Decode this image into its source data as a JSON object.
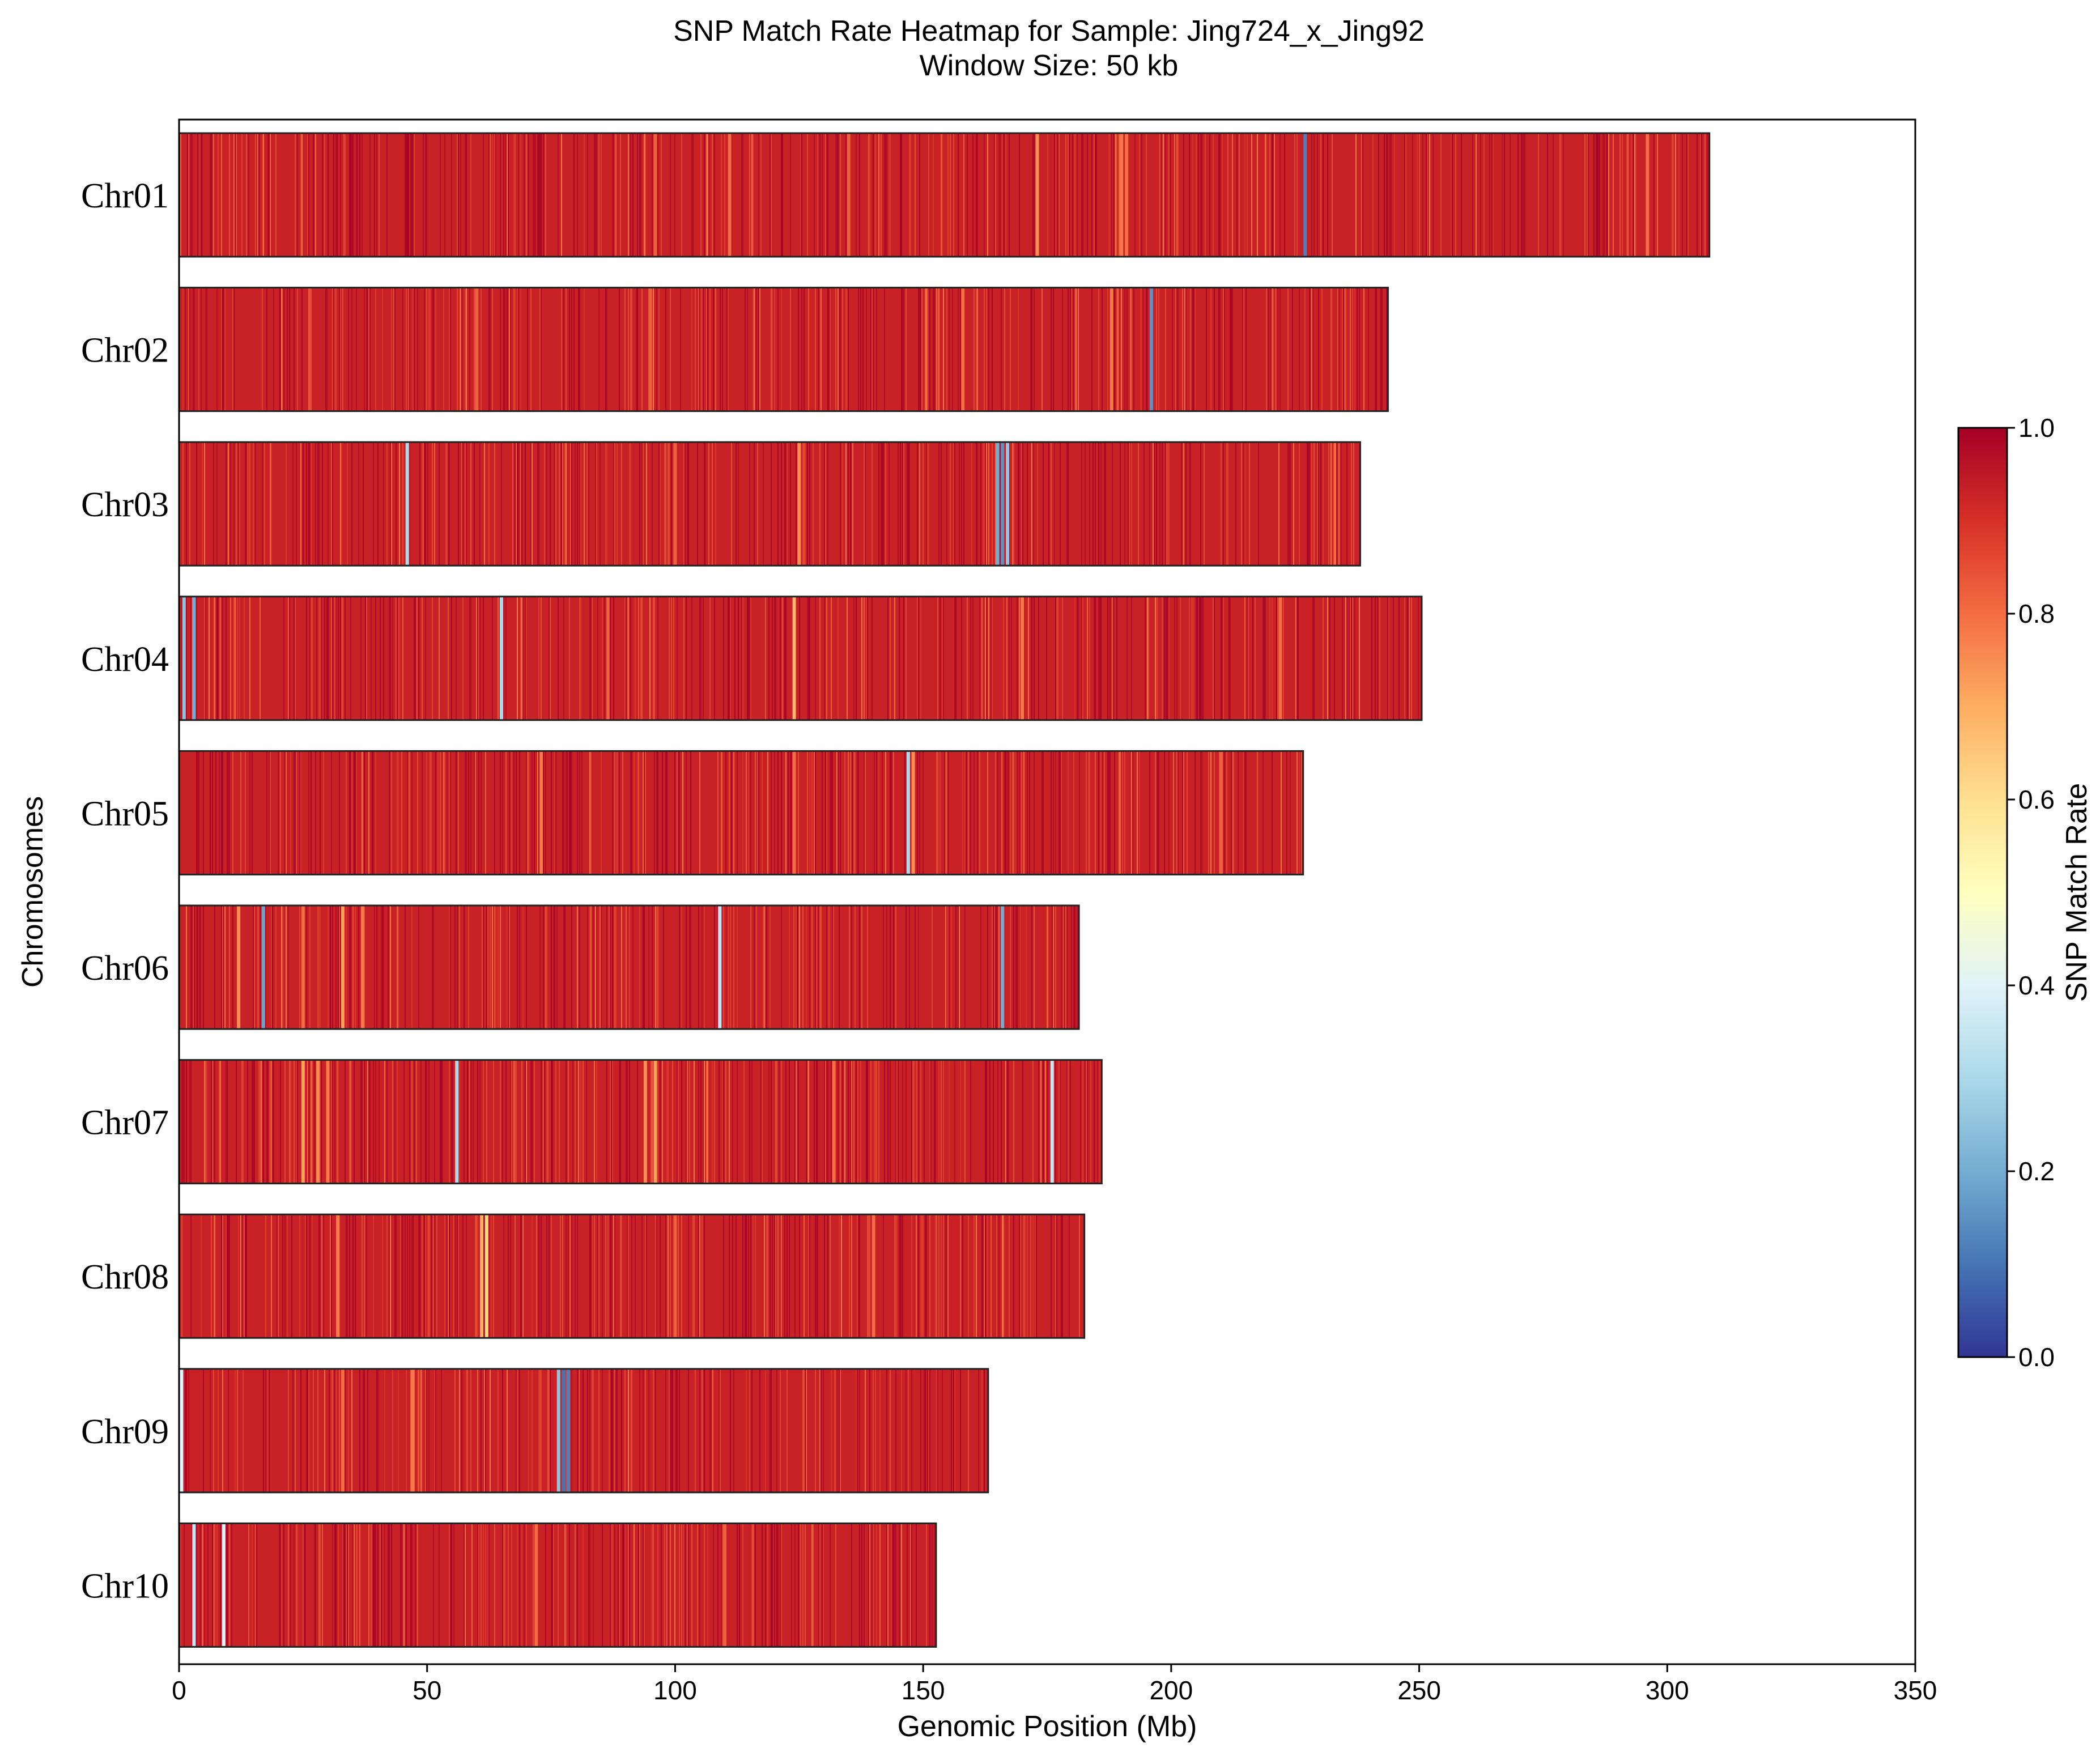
{
  "chart_data": {
    "type": "heatmap",
    "title": "SNP Match Rate Heatmap for Sample: Jing724_x_Jing92",
    "subtitle": "Window Size: 50 kb",
    "xlabel": "Genomic Position (Mb)",
    "ylabel": "Chromosomes",
    "xlim": [
      0,
      350
    ],
    "xticks": [
      "0",
      "50",
      "100",
      "150",
      "200",
      "250",
      "300",
      "350"
    ],
    "colorbar": {
      "label": "SNP Match Rate",
      "range": [
        0.0,
        1.0
      ],
      "ticks": [
        "0.0",
        "0.2",
        "0.4",
        "0.6",
        "0.8",
        "1.0"
      ],
      "colormap": "RdYlBu_r",
      "colors": [
        "#313695",
        "#4575b4",
        "#74add1",
        "#abd9e9",
        "#e0f3f8",
        "#ffffbf",
        "#fee090",
        "#fdae61",
        "#f46d43",
        "#d73027",
        "#a50026"
      ]
    },
    "base_match_rate": 0.93,
    "chromosomes": [
      {
        "name": "Chr01",
        "length_mb": 308.5,
        "features": [
          {
            "pos_mb": 173,
            "value": 0.75
          },
          {
            "pos_mb": 190,
            "value": 0.78
          },
          {
            "pos_mb": 191,
            "value": 0.8
          },
          {
            "pos_mb": 227,
            "value": 0.12
          },
          {
            "pos_mb": 96,
            "value": 0.82
          },
          {
            "pos_mb": 111,
            "value": 0.8
          },
          {
            "pos_mb": 135,
            "value": 0.82
          },
          {
            "pos_mb": 296,
            "value": 0.8
          }
        ]
      },
      {
        "name": "Chr02",
        "length_mb": 243.7,
        "features": [
          {
            "pos_mb": 196,
            "value": 0.15
          },
          {
            "pos_mb": 188,
            "value": 0.78
          },
          {
            "pos_mb": 158,
            "value": 0.8
          },
          {
            "pos_mb": 60,
            "value": 0.82
          },
          {
            "pos_mb": 95,
            "value": 0.82
          }
        ]
      },
      {
        "name": "Chr03",
        "length_mb": 238.1,
        "features": [
          {
            "pos_mb": 46,
            "value": 0.3
          },
          {
            "pos_mb": 165,
            "value": 0.2
          },
          {
            "pos_mb": 166,
            "value": 0.15
          },
          {
            "pos_mb": 167,
            "value": 0.25
          },
          {
            "pos_mb": 125,
            "value": 0.75
          },
          {
            "pos_mb": 100,
            "value": 0.82
          }
        ]
      },
      {
        "name": "Chr04",
        "length_mb": 250.5,
        "features": [
          {
            "pos_mb": 1,
            "value": 0.25
          },
          {
            "pos_mb": 3,
            "value": 0.2
          },
          {
            "pos_mb": 124,
            "value": 0.68
          },
          {
            "pos_mb": 65,
            "value": 0.3
          },
          {
            "pos_mb": 170,
            "value": 0.78
          },
          {
            "pos_mb": 222,
            "value": 0.8
          }
        ]
      },
      {
        "name": "Chr05",
        "length_mb": 226.6,
        "features": [
          {
            "pos_mb": 147,
            "value": 0.3
          },
          {
            "pos_mb": 148,
            "value": 0.75
          },
          {
            "pos_mb": 73,
            "value": 0.78
          },
          {
            "pos_mb": 124,
            "value": 0.8
          },
          {
            "pos_mb": 210,
            "value": 0.82
          }
        ]
      },
      {
        "name": "Chr06",
        "length_mb": 181.4,
        "features": [
          {
            "pos_mb": 17,
            "value": 0.18
          },
          {
            "pos_mb": 12,
            "value": 0.75
          },
          {
            "pos_mb": 33,
            "value": 0.72
          },
          {
            "pos_mb": 37,
            "value": 0.78
          },
          {
            "pos_mb": 109,
            "value": 0.35
          },
          {
            "pos_mb": 166,
            "value": 0.2
          },
          {
            "pos_mb": 25,
            "value": 0.8
          }
        ]
      },
      {
        "name": "Chr07",
        "length_mb": 186.0,
        "features": [
          {
            "pos_mb": 25,
            "value": 0.72
          },
          {
            "pos_mb": 28,
            "value": 0.75
          },
          {
            "pos_mb": 30,
            "value": 0.78
          },
          {
            "pos_mb": 94,
            "value": 0.75
          },
          {
            "pos_mb": 96,
            "value": 0.72
          },
          {
            "pos_mb": 56,
            "value": 0.3
          },
          {
            "pos_mb": 176,
            "value": 0.35
          },
          {
            "pos_mb": 132,
            "value": 0.8
          }
        ]
      },
      {
        "name": "Chr08",
        "length_mb": 182.5,
        "features": [
          {
            "pos_mb": 62,
            "value": 0.62
          },
          {
            "pos_mb": 61,
            "value": 0.7
          },
          {
            "pos_mb": 32,
            "value": 0.78
          },
          {
            "pos_mb": 140,
            "value": 0.8
          },
          {
            "pos_mb": 100,
            "value": 0.82
          }
        ]
      },
      {
        "name": "Chr09",
        "length_mb": 163.1,
        "features": [
          {
            "pos_mb": 77.5,
            "value": 0.1
          },
          {
            "pos_mb": 78.5,
            "value": 0.12
          },
          {
            "pos_mb": 76.5,
            "value": 0.25
          },
          {
            "pos_mb": 47,
            "value": 0.78
          },
          {
            "pos_mb": 33,
            "value": 0.8
          },
          {
            "pos_mb": 0.5,
            "value": 0.4
          }
        ]
      },
      {
        "name": "Chr10",
        "length_mb": 152.6,
        "features": [
          {
            "pos_mb": 3,
            "value": 0.35
          },
          {
            "pos_mb": 9,
            "value": 0.4
          },
          {
            "pos_mb": 72,
            "value": 0.8
          },
          {
            "pos_mb": 110,
            "value": 0.82
          }
        ]
      }
    ]
  }
}
